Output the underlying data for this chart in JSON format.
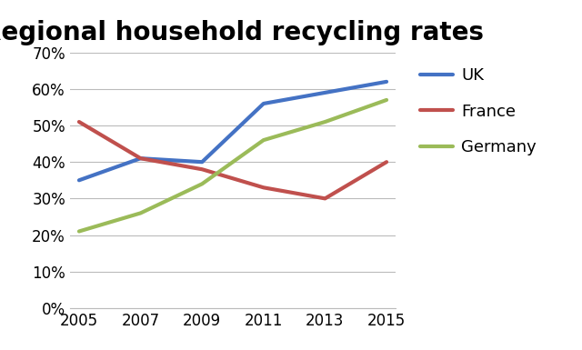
{
  "title": "Regional household recycling rates",
  "years": [
    2005,
    2007,
    2009,
    2011,
    2013,
    2015
  ],
  "series": {
    "UK": {
      "values": [
        35,
        41,
        40,
        56,
        59,
        62
      ],
      "color": "#4472C4"
    },
    "France": {
      "values": [
        51,
        41,
        38,
        33,
        30,
        40
      ],
      "color": "#C0504D"
    },
    "Germany": {
      "values": [
        21,
        26,
        34,
        46,
        51,
        57
      ],
      "color": "#9BBB59"
    }
  },
  "ylim": [
    0,
    70
  ],
  "yticks": [
    0,
    10,
    20,
    30,
    40,
    50,
    60,
    70
  ],
  "xticks": [
    2005,
    2007,
    2009,
    2011,
    2013,
    2015
  ],
  "title_fontsize": 20,
  "legend_fontsize": 13,
  "tick_fontsize": 12,
  "line_width": 3.0,
  "background_color": "#ffffff",
  "grid_color": "#bbbbbb"
}
